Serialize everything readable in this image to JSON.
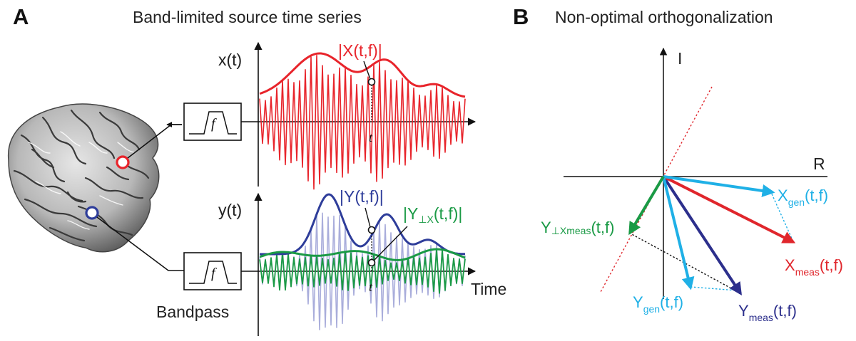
{
  "panelA": {
    "letter": "A",
    "title": "Band-limited source time series",
    "x_axis_label": "x(t)",
    "y_axis_label": "y(t)",
    "x_envelope_label": "|X(t,f)|",
    "y_envelope_label": "|Y(t,f)|",
    "y_orth_label_main": "|Y",
    "y_orth_label_sub": "⊥X",
    "y_orth_label_tail": "(t,f)|",
    "time_label": "Time",
    "t_marker_top": "t",
    "t_marker_bottom": "t",
    "filter_symbol_top": "f",
    "filter_symbol_bottom": "f",
    "bandpass_label": "Bandpass"
  },
  "panelB": {
    "letter": "B",
    "title": "Non-optimal orthogonalization",
    "axis_imag": "I",
    "axis_real": "R",
    "x_gen": {
      "main": "X",
      "sub": "gen",
      "tail": "(t,f)"
    },
    "x_meas": {
      "main": "X",
      "sub": "meas",
      "tail": "(t,f)"
    },
    "y_gen": {
      "main": "Y",
      "sub": "gen",
      "tail": "(t,f)"
    },
    "y_meas": {
      "main": "Y",
      "sub": "meas",
      "tail": "(t,f)"
    },
    "y_orth": {
      "main": "Y",
      "sub": "⊥Xmeas",
      "tail": "(t,f)"
    }
  },
  "colors": {
    "x_signal": "#e8242b",
    "y_signal_faint": "#a9addb",
    "y_envelope": "#2e3d9a",
    "y_orth": "#1a9a45",
    "x_gen_arrow": "#1fb0e6",
    "y_meas_arrow": "#2c2f8c",
    "x_meas_arrow": "#e0262c",
    "y_orth_arrow": "#1a9a45"
  }
}
